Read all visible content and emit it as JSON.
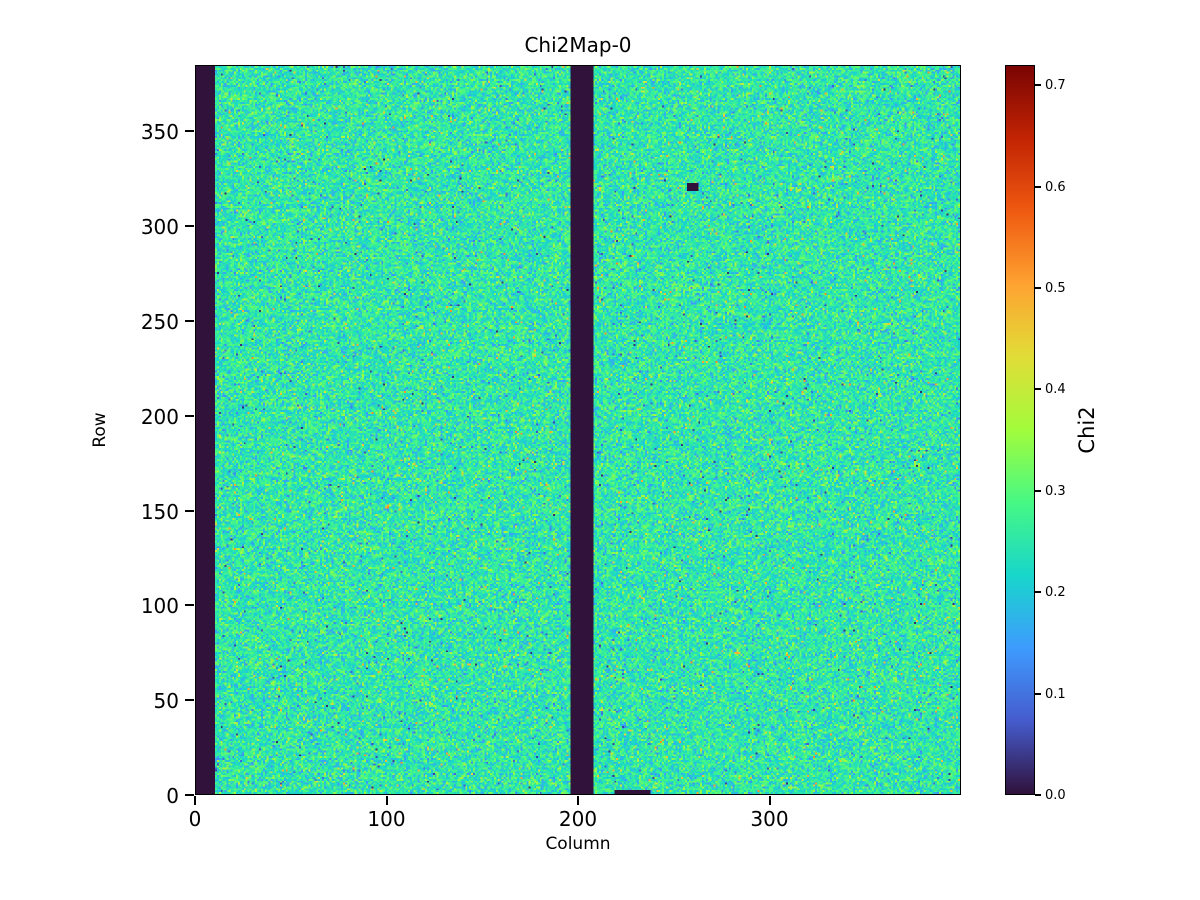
{
  "figure": {
    "background": "#ffffff",
    "text_color": "#000000"
  },
  "chart_data": {
    "type": "heatmap",
    "title": "Chi2Map-0",
    "xlabel": "Column",
    "ylabel": "Row",
    "colorbar_label": "Chi2",
    "x_range": [
      0,
      400
    ],
    "y_range": [
      0,
      385
    ],
    "x_ticks": [
      0,
      100,
      200,
      300
    ],
    "y_ticks": [
      0,
      50,
      100,
      150,
      200,
      250,
      300,
      350
    ],
    "colorbar_ticks": [
      "0.0",
      "0.1",
      "0.2",
      "0.3",
      "0.4",
      "0.5",
      "0.6",
      "0.7"
    ],
    "vmin": 0.0,
    "vmax": 0.72,
    "colormap": "turbo",
    "colormap_stops": [
      [
        0.0,
        "#30123b"
      ],
      [
        0.1,
        "#455bcd"
      ],
      [
        0.2,
        "#3e9bfe"
      ],
      [
        0.3,
        "#18d6cb"
      ],
      [
        0.4,
        "#46f884"
      ],
      [
        0.5,
        "#a2fc3c"
      ],
      [
        0.6,
        "#e1dd37"
      ],
      [
        0.7,
        "#fea331"
      ],
      [
        0.8,
        "#ef5a11"
      ],
      [
        0.9,
        "#c22403"
      ],
      [
        1.0,
        "#7a0403"
      ]
    ],
    "noise_mean": 0.25,
    "noise_std": 0.05,
    "bright_speckle_prob": 0.012,
    "dark_speckle_prob": 0.005,
    "dead_column_bands": [
      [
        0,
        9
      ],
      [
        196,
        207
      ]
    ],
    "dead_rects": [
      {
        "col": 257,
        "row": 319,
        "width": 6,
        "height": 4
      },
      {
        "col": 219,
        "row": 0,
        "width": 19,
        "height": 2
      }
    ],
    "seed": 42
  }
}
